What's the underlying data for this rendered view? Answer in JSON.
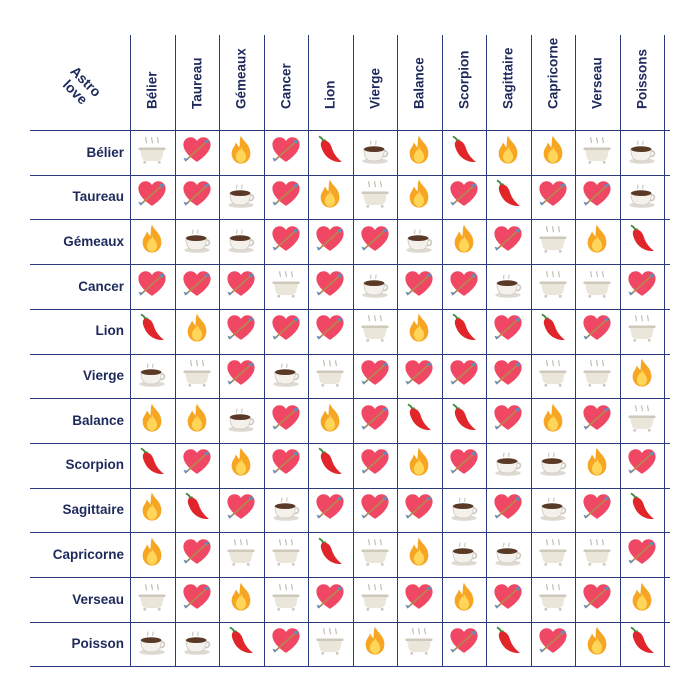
{
  "title": {
    "line1": "Astro",
    "line2": "love"
  },
  "columns": [
    "Bélier",
    "Taureau",
    "Gémeaux",
    "Cancer",
    "Lion",
    "Vierge",
    "Balance",
    "Scorpion",
    "Sagittaire",
    "Capricorne",
    "Verseau",
    "Poissons"
  ],
  "rows": [
    "Bélier",
    "Taureau",
    "Gémeaux",
    "Cancer",
    "Lion",
    "Vierge",
    "Balance",
    "Scorpion",
    "Sagittaire",
    "Capricorne",
    "Verseau",
    "Poisson"
  ],
  "matrix": [
    [
      "bath",
      "heart",
      "fire",
      "heart",
      "pepper",
      "coffee",
      "fire",
      "pepper",
      "fire",
      "fire",
      "bath",
      "coffee"
    ],
    [
      "heart",
      "heart",
      "coffee",
      "heart",
      "fire",
      "bath",
      "fire",
      "heart",
      "pepper",
      "heart",
      "heart",
      "coffee"
    ],
    [
      "fire",
      "coffee",
      "coffee",
      "heart",
      "heart",
      "heart",
      "coffee",
      "fire",
      "heart",
      "bath",
      "fire",
      "pepper"
    ],
    [
      "heart",
      "heart",
      "heart",
      "bath",
      "heart",
      "coffee",
      "heart",
      "heart",
      "coffee",
      "bath",
      "bath",
      "heart"
    ],
    [
      "pepper",
      "fire",
      "heart",
      "heart",
      "heart",
      "bath",
      "fire",
      "pepper",
      "heart",
      "pepper",
      "heart",
      "bath"
    ],
    [
      "coffee",
      "bath",
      "heart",
      "coffee",
      "bath",
      "heart",
      "heart",
      "heart",
      "heart",
      "bath",
      "bath",
      "fire"
    ],
    [
      "fire",
      "fire",
      "coffee",
      "heart",
      "fire",
      "heart",
      "pepper",
      "pepper",
      "heart",
      "fire",
      "heart",
      "bath"
    ],
    [
      "pepper",
      "heart",
      "fire",
      "heart",
      "pepper",
      "heart",
      "fire",
      "heart",
      "coffee",
      "coffee",
      "fire",
      "heart"
    ],
    [
      "fire",
      "pepper",
      "heart",
      "coffee",
      "heart",
      "heart",
      "heart",
      "coffee",
      "heart",
      "coffee",
      "heart",
      "pepper"
    ],
    [
      "fire",
      "heart",
      "bath",
      "bath",
      "pepper",
      "bath",
      "fire",
      "coffee",
      "coffee",
      "bath",
      "bath",
      "heart"
    ],
    [
      "bath",
      "heart",
      "fire",
      "bath",
      "heart",
      "bath",
      "heart",
      "fire",
      "heart",
      "bath",
      "heart",
      "fire"
    ],
    [
      "coffee",
      "coffee",
      "pepper",
      "heart",
      "bath",
      "fire",
      "bath",
      "heart",
      "pepper",
      "heart",
      "fire",
      "pepper"
    ]
  ],
  "colors": {
    "grid": "#2b3a7a",
    "text": "#1f2a5c",
    "heart": "#ef4764",
    "fire": "#f6a623",
    "pepper": "#e0262b",
    "bath": "#e7e2d6"
  }
}
